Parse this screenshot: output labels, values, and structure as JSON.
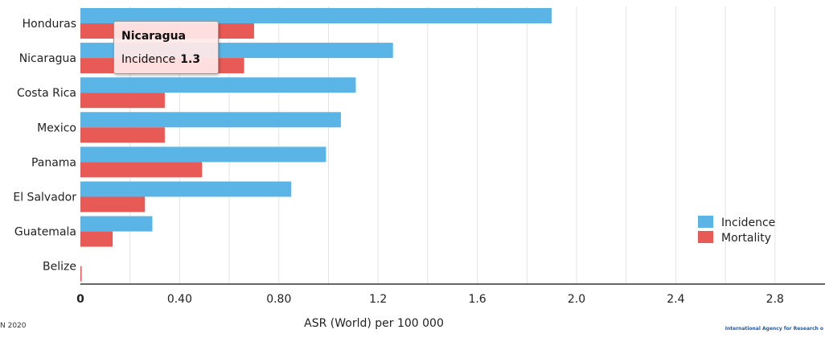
{
  "chart_data": {
    "type": "bar",
    "orientation": "horizontal",
    "categories": [
      "Honduras",
      "Nicaragua",
      "Costa Rica",
      "Mexico",
      "Panama",
      "El Salvador",
      "Guatemala",
      "Belize"
    ],
    "series": [
      {
        "name": "Incidence",
        "color": "#5ab4e5",
        "values": [
          1.9,
          1.26,
          1.11,
          1.05,
          0.99,
          0.85,
          0.29,
          0.0
        ]
      },
      {
        "name": "Mortality",
        "color": "#e85a55",
        "values": [
          0.7,
          0.66,
          0.34,
          0.34,
          0.49,
          0.26,
          0.13,
          0.005
        ]
      }
    ],
    "xlabel": "ASR (World) per 100 000",
    "ylabel": "",
    "xlim": [
      0,
      3.0
    ],
    "xticks": [
      "0",
      "0.40",
      "0.80",
      "1.2",
      "1.6",
      "2.0",
      "2.4",
      "2.8"
    ],
    "grid": true,
    "legend_position": "right",
    "tooltip": {
      "title": "Nicaragua",
      "label": "Incidence",
      "value": "1.3"
    }
  },
  "footer": {
    "left": "N 2020",
    "right": "International Agency for Research o"
  }
}
